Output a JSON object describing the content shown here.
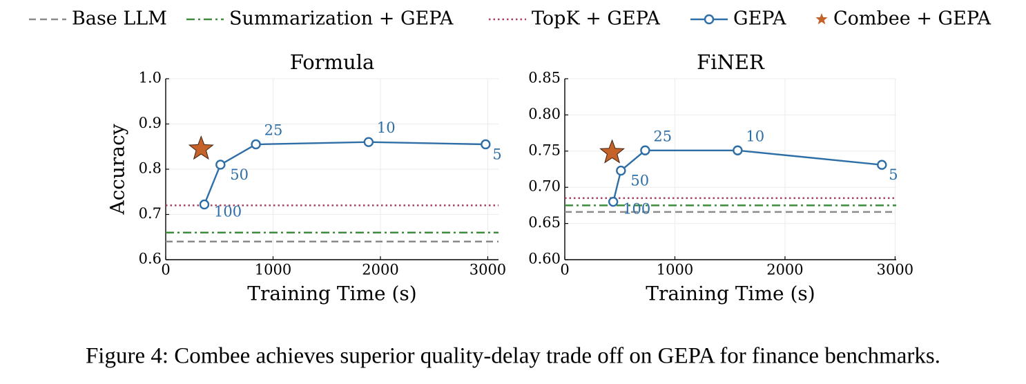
{
  "chart_data": [
    {
      "type": "line",
      "title": "Formula",
      "x_label": "Training Time (s)",
      "y_label": "Accuracy",
      "xlim": [
        0,
        3100
      ],
      "xticks": [
        0,
        1000,
        2000,
        3000
      ],
      "ylim": [
        0.6,
        1
      ],
      "yticks": [
        0.6,
        0.7,
        0.8,
        0.9,
        {
          "value": 1,
          "label": "1.0"
        }
      ],
      "grid": true,
      "series": [
        {
          "name": "Base LLM",
          "type": "hline",
          "style": "dashed",
          "color": "#8a8a8a",
          "value": 0.64
        },
        {
          "name": "Summarization + GEPA",
          "type": "hline",
          "style": "dashdot",
          "color": "#3c8c3c",
          "value": 0.66
        },
        {
          "name": "TopK + GEPA",
          "type": "hline",
          "style": "dotted",
          "color": "#a3405e",
          "value": 0.72
        },
        {
          "name": "GEPA",
          "type": "line",
          "color": "#2e6ea6",
          "x": [
            360,
            510,
            840,
            1890,
            2980
          ],
          "values": [
            0.722,
            0.81,
            0.855,
            0.86,
            0.855
          ],
          "point_labels": [
            "100",
            "50",
            "25",
            "10",
            "5"
          ]
        },
        {
          "name": "Combee + GEPA",
          "type": "star",
          "color": "#c4622a",
          "x": [
            330
          ],
          "values": [
            0.845
          ]
        }
      ]
    },
    {
      "type": "line",
      "title": "FiNER",
      "x_label": "Training Time (s)",
      "xlim": [
        0,
        3010
      ],
      "xticks": [
        0,
        1000,
        2000,
        3000
      ],
      "ylim": [
        0.6,
        0.85
      ],
      "yticks": [
        {
          "value": 0.6,
          "label": "0.60"
        },
        0.65,
        {
          "value": 0.7,
          "label": "0.70"
        },
        0.75,
        {
          "value": 0.8,
          "label": "0.80"
        },
        0.85
      ],
      "grid": true,
      "series": [
        {
          "name": "Base LLM",
          "type": "hline",
          "style": "dashed",
          "color": "#8a8a8a",
          "value": 0.666
        },
        {
          "name": "Summarization + GEPA",
          "type": "hline",
          "style": "dashdot",
          "color": "#3c8c3c",
          "value": 0.675
        },
        {
          "name": "TopK + GEPA",
          "type": "hline",
          "style": "dotted",
          "color": "#a3405e",
          "value": 0.685
        },
        {
          "name": "GEPA",
          "type": "line",
          "color": "#2e6ea6",
          "x": [
            440,
            510,
            730,
            1570,
            2880
          ],
          "values": [
            0.68,
            0.723,
            0.751,
            0.751,
            0.731
          ],
          "point_labels": [
            "100",
            "50",
            "25",
            "10",
            "5"
          ]
        },
        {
          "name": "Combee + GEPA",
          "type": "star",
          "color": "#c4622a",
          "x": [
            430
          ],
          "values": [
            0.748
          ]
        }
      ]
    }
  ],
  "caption": "Figure 4: Combee achieves superior quality-delay trade off on GEPA for finance benchmarks."
}
